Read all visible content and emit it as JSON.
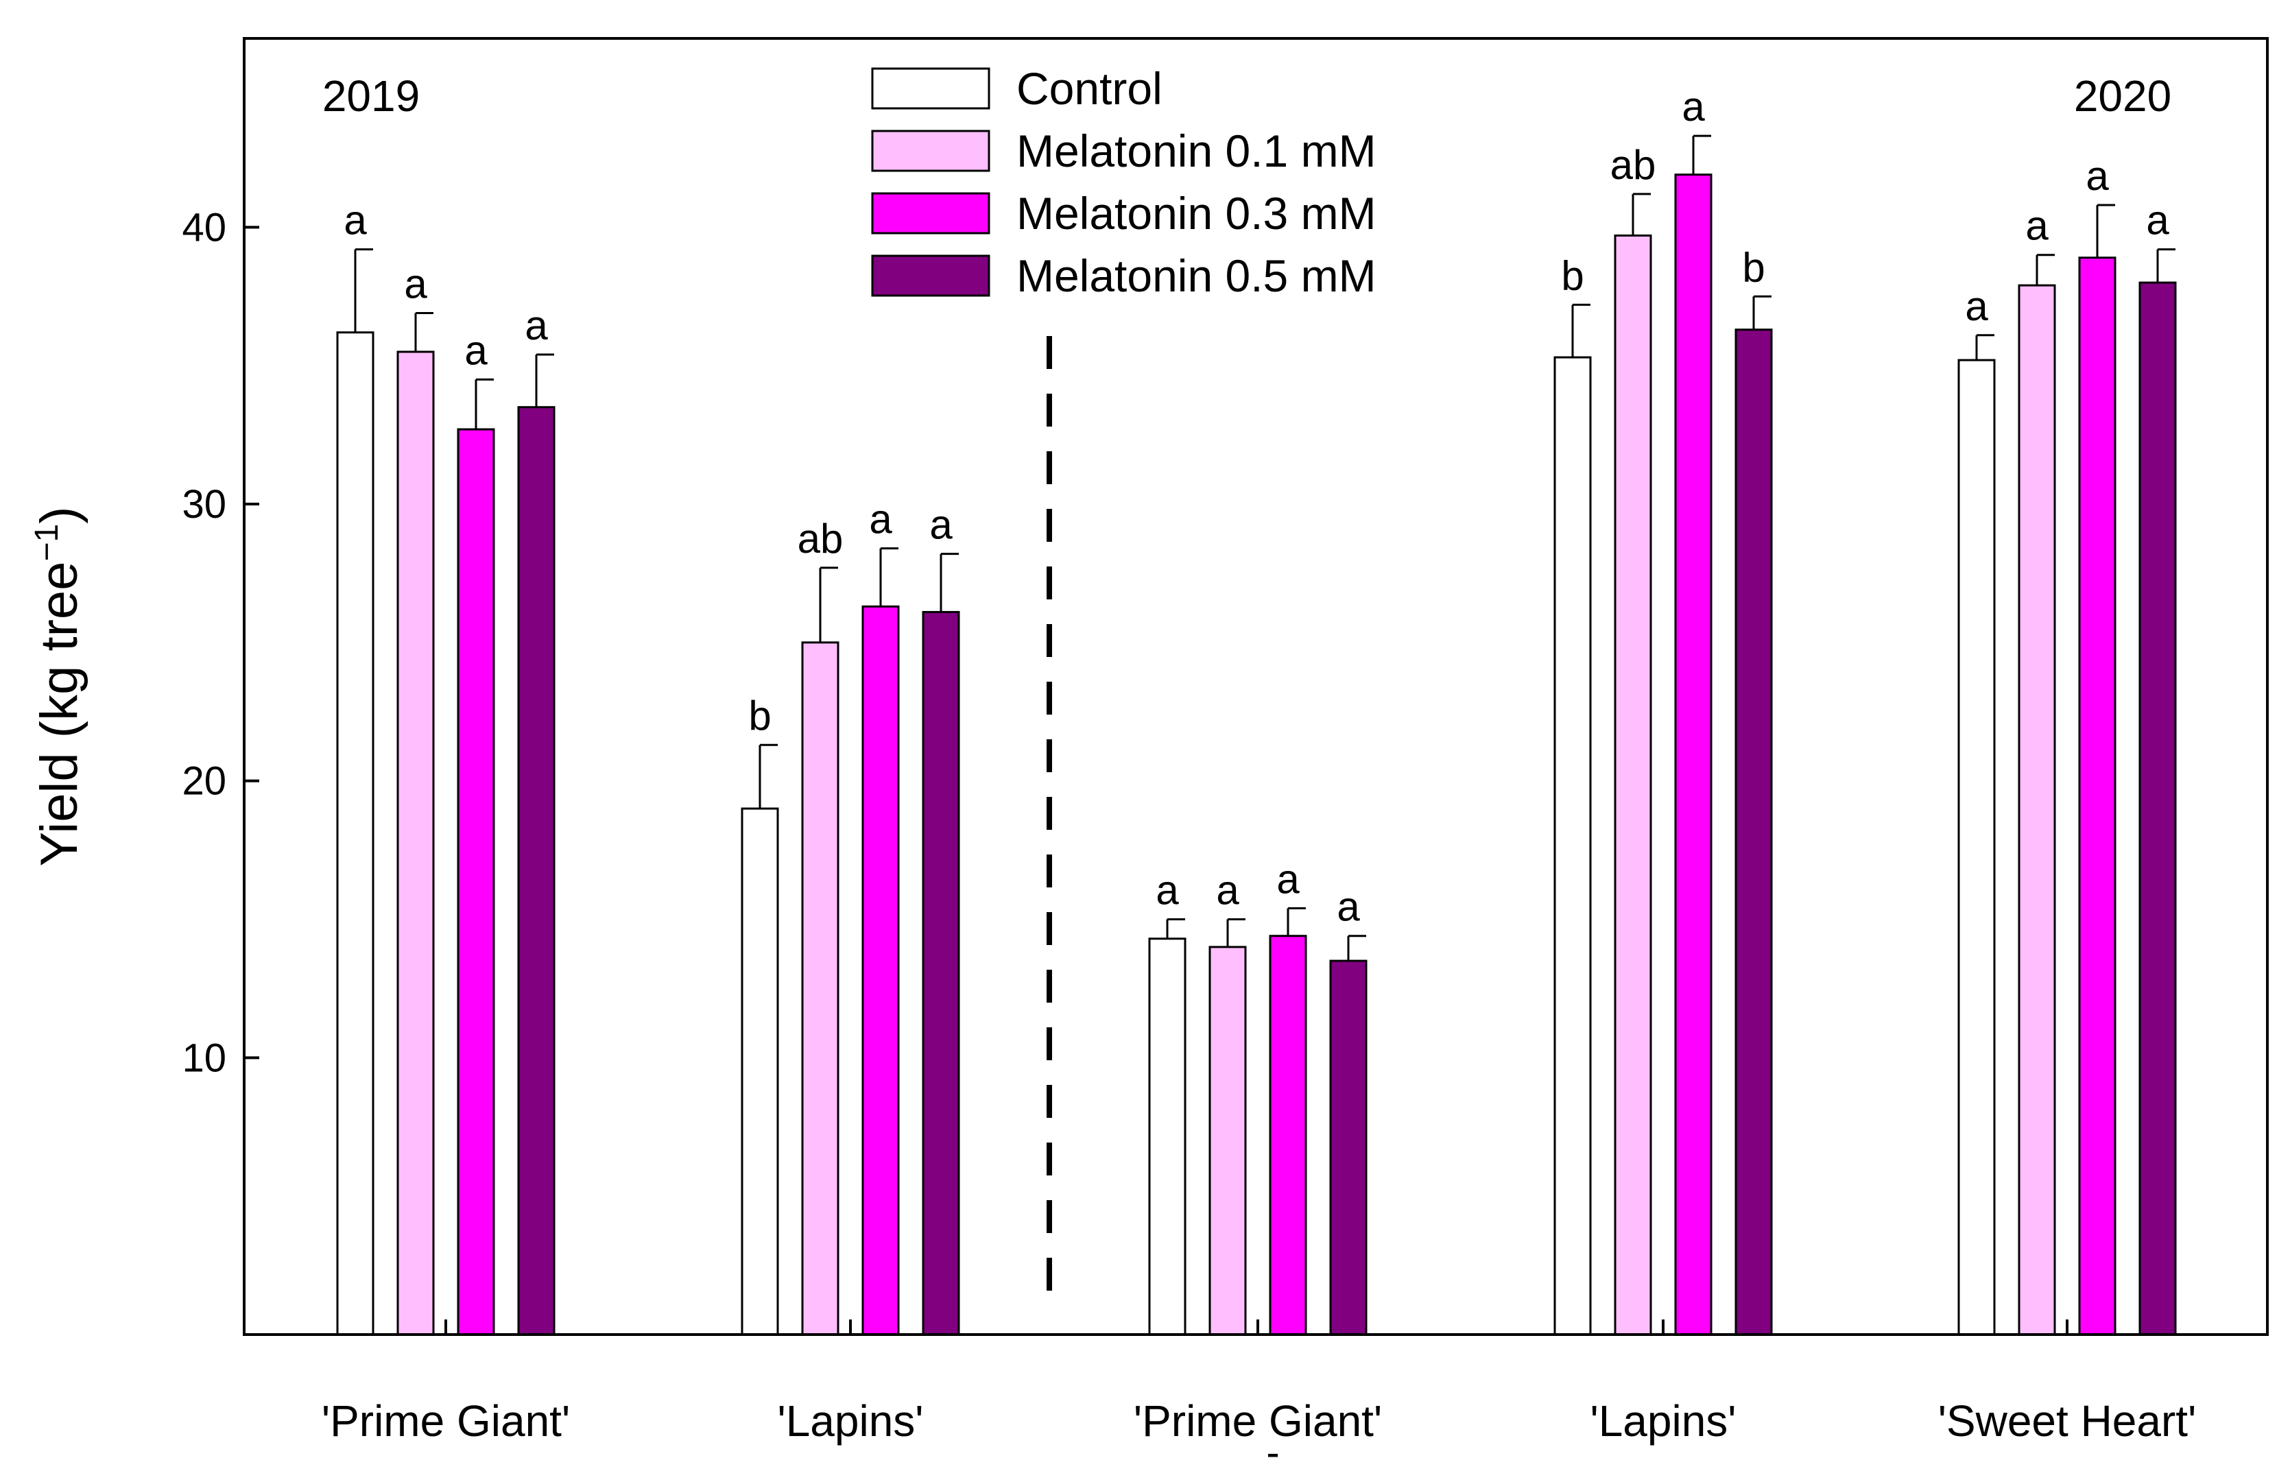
{
  "chart_data": {
    "type": "bar",
    "title": "",
    "xlabel": "",
    "ylabel": "Yield (kg tree",
    "ylabel_superscript": "−1",
    "ylabel_close": ")",
    "ylim": [
      0,
      47
    ],
    "yticks": [
      10,
      20,
      30,
      40
    ],
    "grid": false,
    "legend_position": "top-center",
    "years": [
      "2019",
      "2020"
    ],
    "categories": [
      "'Prime Giant'",
      "'Lapins'",
      "'Prime Giant'",
      "'Lapins'",
      "'Sweet Heart'"
    ],
    "category_years": [
      "2019",
      "2019",
      "2020",
      "2020",
      "2020"
    ],
    "extra_tick_text": "-",
    "series": [
      {
        "name": "Control",
        "color": "#ffffff",
        "values": [
          36.2,
          19.0,
          14.3,
          35.3,
          35.2
        ],
        "errors": [
          3.0,
          2.3,
          0.7,
          1.9,
          0.9
        ],
        "letters": [
          "a",
          "b",
          "a",
          "b",
          "a"
        ]
      },
      {
        "name": "Melatonin 0.1 mM",
        "color": "#ffbfff",
        "values": [
          35.5,
          25.0,
          14.0,
          39.7,
          37.9
        ],
        "errors": [
          1.4,
          2.7,
          1.0,
          1.5,
          1.1
        ],
        "letters": [
          "a",
          "ab",
          "a",
          "ab",
          "a"
        ]
      },
      {
        "name": "Melatonin 0.3 mM",
        "color": "#ff00ff",
        "values": [
          32.7,
          26.3,
          14.4,
          41.9,
          38.9
        ],
        "errors": [
          1.8,
          2.1,
          1.0,
          1.4,
          1.9
        ],
        "letters": [
          "a",
          "a",
          "a",
          "a",
          "a"
        ]
      },
      {
        "name": "Melatonin 0.5 mM",
        "color": "#800080",
        "values": [
          33.5,
          26.1,
          13.5,
          36.3,
          38.0
        ],
        "errors": [
          1.9,
          2.1,
          0.9,
          1.2,
          1.2
        ],
        "letters": [
          "a",
          "a",
          "a",
          "b",
          "a"
        ]
      }
    ]
  }
}
